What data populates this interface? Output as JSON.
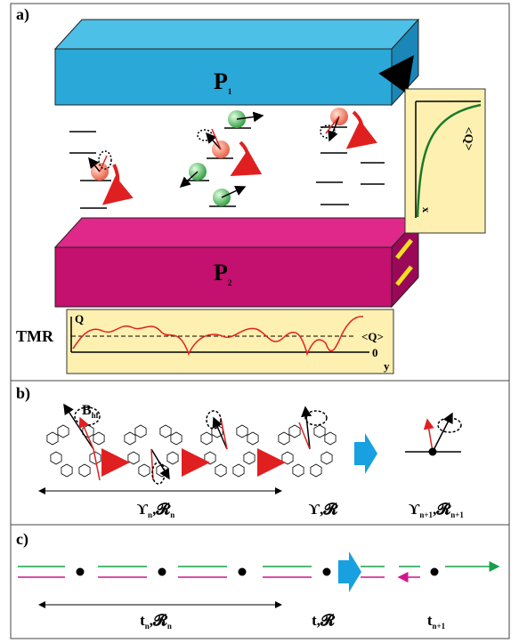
{
  "panel_a": {
    "label": "a)",
    "slab_top": {
      "main": "P",
      "sub": "1"
    },
    "slab_bottom": {
      "main": "P",
      "sub": "2"
    },
    "inset": {
      "y_label": "<Q>",
      "x_label": "x"
    },
    "tmr": {
      "label": "TMR",
      "y_label": "Q",
      "mean_label": "<Q>",
      "zero_label": "0",
      "x_label": "y"
    }
  },
  "panel_b": {
    "label": "b)",
    "field": {
      "main": "B",
      "sub": "hf"
    },
    "labels": [
      {
        "a": "ϒ",
        "a_sub": "n",
        "sep": ",",
        "b": "𝓡",
        "b_sub": "n"
      },
      {
        "a": "ϒ",
        "sep": ",",
        "b": "𝓡"
      },
      {
        "a": "ϒ",
        "a_sub": "n+1",
        "sep": ",",
        "b": "𝓡",
        "b_sub": "n+1"
      }
    ]
  },
  "panel_c": {
    "label": "c)",
    "labels": [
      {
        "a": "t",
        "a_sub": "n",
        "sep": ",",
        "b": "𝓡",
        "b_sub": "n"
      },
      {
        "a": "t",
        "sep": ",",
        "b": "𝓡"
      },
      {
        "a": "t",
        "a_sub": "n+1"
      }
    ]
  }
}
